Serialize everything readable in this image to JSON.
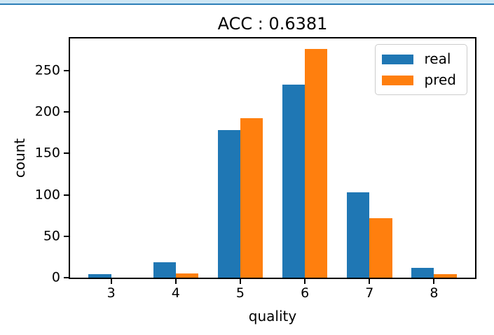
{
  "top_bar": {
    "band_color": "#cde6f4",
    "line_color": "#2d7fb8"
  },
  "chart_data": {
    "type": "bar",
    "title": "ACC : 0.6381",
    "xlabel": "quality",
    "ylabel": "count",
    "categories": [
      "3",
      "4",
      "5",
      "6",
      "7",
      "8"
    ],
    "x": [
      3,
      4,
      5,
      6,
      7,
      8
    ],
    "series": [
      {
        "name": "real",
        "color": "#1f77b4",
        "values": [
          4,
          19,
          178,
          233,
          103,
          12
        ]
      },
      {
        "name": "pred",
        "color": "#ff7f0e",
        "values": [
          0,
          5,
          193,
          276,
          72,
          4
        ]
      }
    ],
    "bar_width": 0.35,
    "xlim": [
      2.364,
      8.635
    ],
    "ylim": [
      0,
      289
    ],
    "yticks": [
      0,
      50,
      100,
      150,
      200,
      250
    ],
    "grid": false,
    "legend": {
      "position": "upper right",
      "entries": [
        "real",
        "pred"
      ]
    },
    "axis_color": "#000000",
    "text_color": "#000000"
  }
}
